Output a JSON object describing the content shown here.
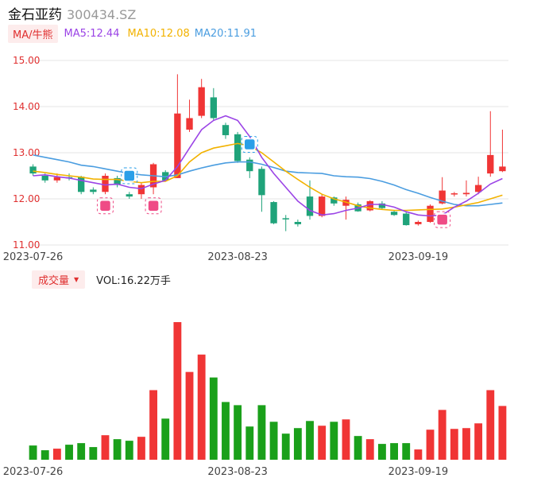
{
  "header": {
    "name": "金石亚药",
    "code": "300434.SZ"
  },
  "ma_bar": {
    "tag": "MA/牛熊",
    "ma5": "MA5:12.44",
    "ma10": "MA10:12.08",
    "ma20": "MA20:11.91"
  },
  "volume_bar": {
    "tag": "成交量",
    "value": "VOL:16.22万手"
  },
  "colors": {
    "up": "#f03535",
    "down": "#1fa37a",
    "vol_down": "#1aa01a",
    "ma5": "#9b44e6",
    "ma10": "#f2b200",
    "ma20": "#4a9de0",
    "grid": "#e6e6e6"
  },
  "chart_data": [
    {
      "type": "candlestick",
      "title": "",
      "y_ticks": [
        "15.00",
        "14.00",
        "13.00",
        "12.00",
        "11.00"
      ],
      "ylim": [
        11.0,
        15.0
      ],
      "x_tick_labels": [
        {
          "index": 0,
          "label": "2023-07-26"
        },
        {
          "index": 17,
          "label": "2023-08-23"
        },
        {
          "index": 32,
          "label": "2023-09-19"
        }
      ],
      "candles": [
        {
          "o": 12.7,
          "c": 12.55,
          "h": 12.75,
          "l": 12.5
        },
        {
          "o": 12.5,
          "c": 12.4,
          "h": 12.55,
          "l": 12.35
        },
        {
          "o": 12.4,
          "c": 12.47,
          "h": 12.55,
          "l": 12.35
        },
        {
          "o": 12.47,
          "c": 12.45,
          "h": 12.55,
          "l": 12.4
        },
        {
          "o": 12.48,
          "c": 12.15,
          "h": 12.5,
          "l": 12.1
        },
        {
          "o": 12.2,
          "c": 12.15,
          "h": 12.25,
          "l": 12.1
        },
        {
          "o": 12.15,
          "c": 12.5,
          "h": 12.55,
          "l": 12.1
        },
        {
          "o": 12.45,
          "c": 12.3,
          "h": 12.5,
          "l": 12.25
        },
        {
          "o": 12.1,
          "c": 12.05,
          "h": 12.15,
          "l": 12.0
        },
        {
          "o": 12.1,
          "c": 12.3,
          "h": 12.35,
          "l": 12.0
        },
        {
          "o": 12.25,
          "c": 12.75,
          "h": 12.78,
          "l": 12.1
        },
        {
          "o": 12.58,
          "c": 12.4,
          "h": 12.62,
          "l": 12.38
        },
        {
          "o": 12.45,
          "c": 13.85,
          "h": 14.7,
          "l": 12.45
        },
        {
          "o": 13.5,
          "c": 13.75,
          "h": 14.15,
          "l": 13.45
        },
        {
          "o": 13.8,
          "c": 14.42,
          "h": 14.6,
          "l": 13.75
        },
        {
          "o": 14.2,
          "c": 13.75,
          "h": 14.4,
          "l": 13.7
        },
        {
          "o": 13.6,
          "c": 13.38,
          "h": 13.65,
          "l": 13.3
        },
        {
          "o": 13.4,
          "c": 12.82,
          "h": 13.45,
          "l": 12.78
        },
        {
          "o": 12.85,
          "c": 12.6,
          "h": 12.9,
          "l": 12.45
        },
        {
          "o": 12.65,
          "c": 12.08,
          "h": 12.7,
          "l": 11.72
        },
        {
          "o": 11.93,
          "c": 11.47,
          "h": 11.95,
          "l": 11.45
        },
        {
          "o": 11.58,
          "c": 11.57,
          "h": 11.65,
          "l": 11.3
        },
        {
          "o": 11.5,
          "c": 11.45,
          "h": 11.55,
          "l": 11.4
        },
        {
          "o": 12.05,
          "c": 11.63,
          "h": 12.4,
          "l": 11.55
        },
        {
          "o": 11.63,
          "c": 12.05,
          "h": 12.1,
          "l": 11.6
        },
        {
          "o": 12.03,
          "c": 11.9,
          "h": 12.05,
          "l": 11.85
        },
        {
          "o": 11.85,
          "c": 11.98,
          "h": 12.05,
          "l": 11.55
        },
        {
          "o": 11.88,
          "c": 11.73,
          "h": 11.92,
          "l": 11.72
        },
        {
          "o": 11.75,
          "c": 11.95,
          "h": 11.97,
          "l": 11.73
        },
        {
          "o": 11.9,
          "c": 11.8,
          "h": 11.95,
          "l": 11.78
        },
        {
          "o": 11.72,
          "c": 11.65,
          "h": 11.75,
          "l": 11.63
        },
        {
          "o": 11.68,
          "c": 11.43,
          "h": 11.72,
          "l": 11.42
        },
        {
          "o": 11.45,
          "c": 11.5,
          "h": 11.53,
          "l": 11.42
        },
        {
          "o": 11.5,
          "c": 11.85,
          "h": 11.88,
          "l": 11.48
        },
        {
          "o": 11.9,
          "c": 12.18,
          "h": 12.47,
          "l": 11.88
        },
        {
          "o": 12.1,
          "c": 12.12,
          "h": 12.15,
          "l": 12.05
        },
        {
          "o": 12.1,
          "c": 12.13,
          "h": 12.4,
          "l": 12.05
        },
        {
          "o": 12.15,
          "c": 12.3,
          "h": 12.48,
          "l": 12.1
        },
        {
          "o": 12.55,
          "c": 12.95,
          "h": 13.9,
          "l": 12.48
        },
        {
          "o": 12.6,
          "c": 12.7,
          "h": 13.5,
          "l": 12.58
        }
      ],
      "ma5": [
        12.5,
        12.52,
        12.48,
        12.45,
        12.4,
        12.35,
        12.3,
        12.32,
        12.25,
        12.22,
        12.32,
        12.4,
        12.7,
        13.1,
        13.5,
        13.7,
        13.8,
        13.7,
        13.35,
        12.9,
        12.55,
        12.25,
        11.95,
        11.75,
        11.65,
        11.68,
        11.75,
        11.8,
        11.88,
        11.88,
        11.82,
        11.72,
        11.65,
        11.63,
        11.65,
        11.82,
        11.95,
        12.12,
        12.32,
        12.44
      ],
      "ma10": [
        12.6,
        12.57,
        12.53,
        12.5,
        12.47,
        12.43,
        12.42,
        12.42,
        12.38,
        12.35,
        12.38,
        12.38,
        12.5,
        12.8,
        13.0,
        13.1,
        13.15,
        13.2,
        13.15,
        13.0,
        12.8,
        12.6,
        12.42,
        12.25,
        12.1,
        12.0,
        11.93,
        11.85,
        11.8,
        11.77,
        11.75,
        11.75,
        11.76,
        11.77,
        11.78,
        11.82,
        11.87,
        11.92,
        12.0,
        12.08
      ],
      "ma20": [
        12.95,
        12.9,
        12.85,
        12.8,
        12.73,
        12.7,
        12.65,
        12.6,
        12.55,
        12.52,
        12.5,
        12.48,
        12.52,
        12.6,
        12.67,
        12.73,
        12.78,
        12.8,
        12.8,
        12.75,
        12.68,
        12.6,
        12.57,
        12.56,
        12.55,
        12.5,
        12.48,
        12.47,
        12.44,
        12.38,
        12.3,
        12.2,
        12.12,
        12.03,
        11.95,
        11.88,
        11.85,
        11.85,
        11.88,
        11.91
      ]
    },
    {
      "type": "bar",
      "title": "成交量",
      "x_tick_labels": [
        "2023-07-26",
        "2023-08-23",
        "2023-09-19"
      ],
      "values": [
        18,
        12,
        14,
        19,
        21,
        16,
        31,
        26,
        24,
        29,
        88,
        52,
        174,
        111,
        133,
        104,
        73,
        69,
        42,
        69,
        48,
        33,
        40,
        49,
        43,
        48,
        51,
        30,
        26,
        20,
        21,
        21,
        13,
        38,
        63,
        39,
        40,
        46,
        88,
        68
      ]
    }
  ]
}
